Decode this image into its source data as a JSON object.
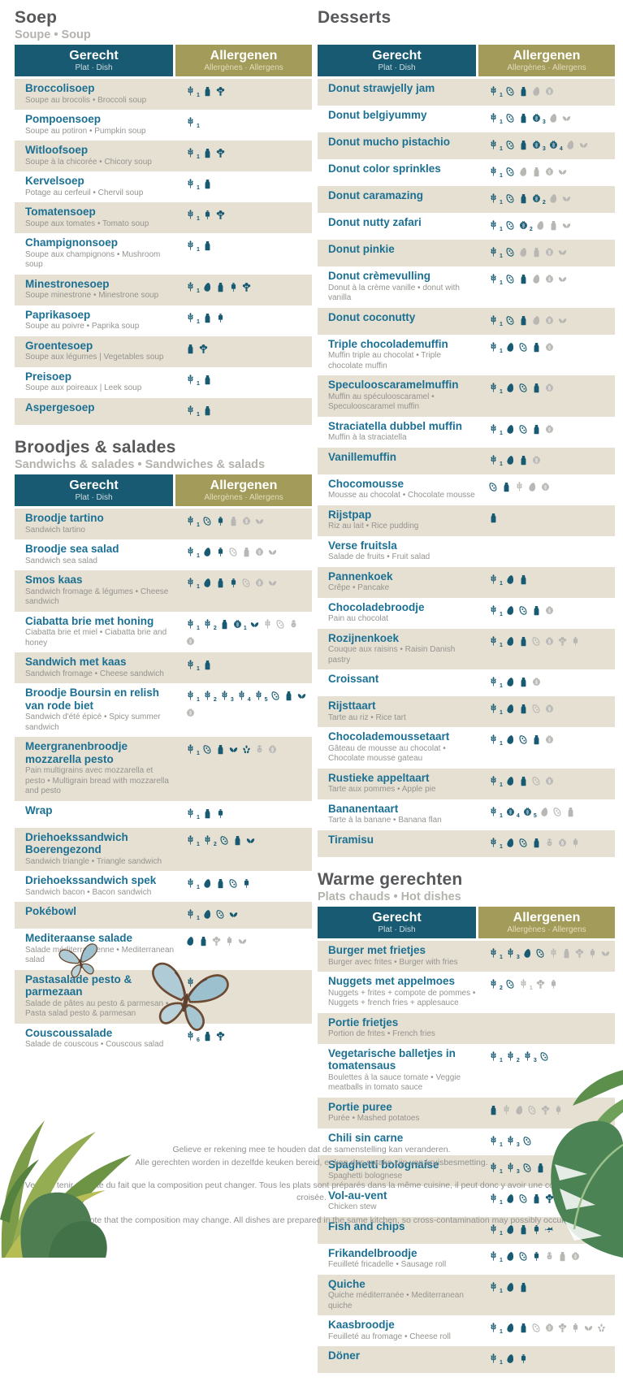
{
  "table_header": {
    "dish_title": "Gerecht",
    "dish_sub": "Plat · Dish",
    "allergen_title": "Allergenen",
    "allergen_sub": "Allergènes · Allergens"
  },
  "colors": {
    "teal_header": "#175a72",
    "olive_header": "#a39b59",
    "row_beige": "#e5e0d2",
    "dish_name_teal": "#1c7093",
    "icon_present": "#175a72",
    "icon_trace": "#b9b7b3"
  },
  "icon_names": [
    "gluten",
    "egg",
    "milk",
    "celery",
    "mustard",
    "soy",
    "nuts",
    "lupine",
    "peanut",
    "sesame",
    "fish"
  ],
  "sections": [
    {
      "id": "soep",
      "column": "left",
      "title": "Soep",
      "subtitle": "Soupe • Soup",
      "rows": [
        {
          "name": "Broccolisoep",
          "subtitle": "Soupe au brocolis • Broccoli soup",
          "allergens": [
            "gluten.1",
            "milk",
            "celery"
          ]
        },
        {
          "name": "Pompoensoep",
          "subtitle": "Soupe au potiron • Pumpkin soup",
          "allergens": [
            "gluten.1"
          ]
        },
        {
          "name": "Witloofsoep",
          "subtitle": "Soupe à la chicorée • Chicory soup",
          "allergens": [
            "gluten.1",
            "milk",
            "celery"
          ]
        },
        {
          "name": "Kervelsoep",
          "subtitle": "Potage au cerfeuil • Chervil soup",
          "allergens": [
            "gluten.1",
            "milk"
          ]
        },
        {
          "name": "Tomatensoep",
          "subtitle": "Soupe aux tomates • Tomato soup",
          "allergens": [
            "gluten.1",
            "mustard",
            "celery"
          ]
        },
        {
          "name": "Champignonsoep",
          "subtitle": "Soupe aux champignons • Mushroom soup",
          "allergens": [
            "gluten.1",
            "milk"
          ]
        },
        {
          "name": "Minestronesoep",
          "subtitle": "Soupe minestrone • Minestrone soup",
          "allergens": [
            "gluten.1",
            "egg",
            "milk",
            "mustard",
            "celery"
          ]
        },
        {
          "name": "Paprikasoep",
          "subtitle": "Soupe au poivre • Paprika soup",
          "allergens": [
            "gluten.1",
            "milk",
            "mustard"
          ]
        },
        {
          "name": "Groentesoep",
          "subtitle": "Soupe aux légumes | Vegetables soup",
          "allergens": [
            "milk",
            "celery"
          ]
        },
        {
          "name": "Preisoep",
          "subtitle": "Soupe aux poireaux | Leek soup",
          "allergens": [
            "gluten.1",
            "milk"
          ]
        },
        {
          "name": "Aspergesoep",
          "subtitle": "",
          "allergens": [
            "gluten.1",
            "milk"
          ]
        }
      ]
    },
    {
      "id": "broodjes",
      "column": "left",
      "title": "Broodjes & salades",
      "subtitle": "Sandwichs & salades • Sandwiches & salads",
      "rows": [
        {
          "name": "Broodje tartino",
          "subtitle": "Sandwich tartino",
          "allergens": [
            "gluten.1",
            "soy",
            "mustard",
            "-milk",
            "-nuts",
            "-lupine"
          ]
        },
        {
          "name": "Broodje sea salad",
          "subtitle": "Sandwich sea salad",
          "allergens": [
            "gluten.1",
            "egg",
            "mustard",
            "-soy",
            "-milk",
            "-nuts",
            "-lupine"
          ]
        },
        {
          "name": "Smos kaas",
          "subtitle": "Sandwich fromage & légumes • Cheese sandwich",
          "allergens": [
            "gluten.1",
            "egg",
            "milk",
            "mustard",
            "-soy",
            "-nuts",
            "-lupine"
          ]
        },
        {
          "name": "Ciabatta brie met honing",
          "subtitle": "Ciabatta brie et miel • Ciabatta brie and honey",
          "allergens": [
            "gluten.1",
            "gluten.2",
            "milk",
            "nuts.1",
            "lupine",
            "-gluten",
            "-soy",
            "-peanut",
            "-nuts"
          ]
        },
        {
          "name": "Sandwich met kaas",
          "subtitle": "Sandwich fromage • Cheese sandwich",
          "allergens": [
            "gluten.1",
            "milk"
          ]
        },
        {
          "name": "Broodje Boursin en relish van rode biet",
          "subtitle": "Sandwich d'été épicé • Spicy summer sandwich",
          "allergens": [
            "gluten.1",
            "gluten.2",
            "gluten.3",
            "gluten.4",
            "gluten.5",
            "soy",
            "milk",
            "lupine",
            "-nuts"
          ]
        },
        {
          "name": "Meergranenbroodje mozzarella pesto",
          "subtitle": "Pain multigrains avec mozzarella et pesto • Multigrain bread with mozzarella and pesto",
          "allergens": [
            "gluten.1",
            "soy",
            "milk",
            "lupine",
            "sesame",
            "-peanut",
            "-nuts"
          ]
        },
        {
          "name": "Wrap",
          "subtitle": "",
          "allergens": [
            "gluten.1",
            "milk",
            "mustard"
          ]
        },
        {
          "name": "Driehoekssandwich Boerengezond",
          "subtitle": "Sandwich triangle • Triangle sandwich",
          "allergens": [
            "gluten.1",
            "gluten.2",
            "soy",
            "milk",
            "lupine"
          ]
        },
        {
          "name": "Driehoekssandwich spek",
          "subtitle": "Sandwich bacon • Bacon sandwich",
          "allergens": [
            "gluten.1",
            "egg",
            "milk",
            "soy",
            "mustard"
          ]
        },
        {
          "name": "Pokébowl",
          "subtitle": "",
          "allergens": [
            "gluten.1",
            "egg",
            "soy",
            "lupine"
          ]
        },
        {
          "name": "Mediteraanse salade",
          "subtitle": "Salade méditerranéenne • Mediterranean salad",
          "allergens": [
            "egg",
            "milk",
            "-celery",
            "-mustard",
            "-lupine"
          ]
        },
        {
          "name": "Pastasalade pesto & parmezaan",
          "subtitle": "Salade de pâtes au pesto & parmesan • Pasta salad pesto & parmesan",
          "allergens": [
            "gluten.1",
            "egg",
            "milk"
          ]
        },
        {
          "name": "Couscoussalade",
          "subtitle": "Salade de couscous • Couscous salad",
          "allergens": [
            "gluten.6",
            "milk",
            "celery"
          ]
        }
      ]
    },
    {
      "id": "desserts",
      "column": "right",
      "title": "Desserts",
      "subtitle": "",
      "rows": [
        {
          "name": "Donut strawjelly jam",
          "subtitle": "",
          "allergens": [
            "gluten.1",
            "soy",
            "milk",
            "-egg",
            "-nuts"
          ]
        },
        {
          "name": "Donut belgiyummy",
          "subtitle": "",
          "allergens": [
            "gluten.1",
            "soy",
            "milk",
            "nuts.3",
            "-egg",
            "-lupine"
          ]
        },
        {
          "name": "Donut mucho pistachio",
          "subtitle": "",
          "allergens": [
            "gluten.1",
            "soy",
            "milk",
            "nuts.3",
            "nuts.4",
            "-egg",
            "-lupine"
          ]
        },
        {
          "name": "Donut color sprinkles",
          "subtitle": "",
          "allergens": [
            "gluten.1",
            "soy",
            "-egg",
            "-milk",
            "-nuts",
            "-lupine"
          ]
        },
        {
          "name": "Donut caramazing",
          "subtitle": "",
          "allergens": [
            "gluten.1",
            "soy",
            "milk",
            "nuts.2",
            "-egg",
            "-lupine"
          ]
        },
        {
          "name": "Donut nutty zafari",
          "subtitle": "",
          "allergens": [
            "gluten.1",
            "soy",
            "nuts.2",
            "-egg",
            "-milk",
            "-lupine"
          ]
        },
        {
          "name": "Donut pinkie",
          "subtitle": "",
          "allergens": [
            "gluten.1",
            "soy",
            "-egg",
            "-milk",
            "-nuts",
            "-lupine"
          ]
        },
        {
          "name": "Donut crèmevulling",
          "subtitle": "Donut à la crème vanille • donut with vanilla",
          "allergens": [
            "gluten.1",
            "soy",
            "milk",
            "-egg",
            "-nuts",
            "-lupine"
          ]
        },
        {
          "name": "Donut coconutty",
          "subtitle": "",
          "allergens": [
            "gluten.1",
            "soy",
            "milk",
            "-egg",
            "-nuts",
            "-lupine"
          ]
        },
        {
          "name": "Triple chocolademuffin",
          "subtitle": "Muffin triple au chocolat • Triple chocolate muffin",
          "allergens": [
            "gluten.1",
            "egg",
            "soy",
            "milk",
            "-nuts"
          ]
        },
        {
          "name": "Speculooscaramelmuffin",
          "subtitle": "Muffin au spéculooscaramel • Speculooscaramel muffin",
          "allergens": [
            "gluten.1",
            "egg",
            "soy",
            "milk",
            "-nuts"
          ]
        },
        {
          "name": "Straciatella dubbel muffin",
          "subtitle": "Muffin à la straciatella",
          "allergens": [
            "gluten.1",
            "egg",
            "soy",
            "milk",
            "-nuts"
          ]
        },
        {
          "name": "Vanillemuffin",
          "subtitle": "",
          "allergens": [
            "gluten.1",
            "egg",
            "milk",
            "-nuts"
          ]
        },
        {
          "name": "Chocomousse",
          "subtitle": "Mousse au chocolat • Chocolate mousse",
          "allergens": [
            "soy",
            "milk",
            "-gluten",
            "-egg",
            "-nuts"
          ]
        },
        {
          "name": "Rijstpap",
          "subtitle": "Riz au lait • Rice pudding",
          "allergens": [
            "milk"
          ]
        },
        {
          "name": "Verse fruitsla",
          "subtitle": "Salade de fruits • Fruit salad",
          "allergens": []
        },
        {
          "name": "Pannenkoek",
          "subtitle": "Crêpe • Pancake",
          "allergens": [
            "gluten.1",
            "egg",
            "milk"
          ]
        },
        {
          "name": "Chocoladebroodje",
          "subtitle": "Pain au chocolat",
          "allergens": [
            "gluten.1",
            "egg",
            "soy",
            "milk",
            "-nuts"
          ]
        },
        {
          "name": "Rozijnenkoek",
          "subtitle": "Couque aux raisins • Raisin Danish pastry",
          "allergens": [
            "gluten.1",
            "egg",
            "milk",
            "-soy",
            "-nuts",
            "-celery",
            "-mustard"
          ]
        },
        {
          "name": "Croissant",
          "subtitle": "",
          "allergens": [
            "gluten.1",
            "egg",
            "milk",
            "-nuts"
          ]
        },
        {
          "name": "Rijsttaart",
          "subtitle": "Tarte au riz • Rice tart",
          "allergens": [
            "gluten.1",
            "egg",
            "milk",
            "-soy",
            "-nuts"
          ]
        },
        {
          "name": "Chocolademoussetaart",
          "subtitle": "Gâteau de mousse au chocolat • Chocolate mousse gateau",
          "allergens": [
            "gluten.1",
            "egg",
            "soy",
            "milk",
            "-nuts"
          ]
        },
        {
          "name": "Rustieke appeltaart",
          "subtitle": "Tarte aux pommes • Apple pie",
          "allergens": [
            "gluten.1",
            "egg",
            "milk",
            "-soy",
            "-nuts"
          ]
        },
        {
          "name": "Bananentaart",
          "subtitle": "Tarte à la banane • Banana flan",
          "allergens": [
            "gluten.1",
            "nuts.4",
            "nuts.5",
            "-egg",
            "-soy",
            "-milk"
          ]
        },
        {
          "name": "Tiramisu",
          "subtitle": "",
          "allergens": [
            "gluten.1",
            "egg",
            "soy",
            "milk",
            "-peanut",
            "-nuts",
            "-mustard"
          ]
        }
      ]
    },
    {
      "id": "warme-gerechten",
      "column": "right",
      "title": "Warme gerechten",
      "subtitle": "Plats chauds • Hot dishes",
      "rows": [
        {
          "name": "Burger met frietjes",
          "subtitle": "Burger avec frites • Burger with fries",
          "allergens": [
            "gluten.1",
            "gluten.3",
            "egg",
            "soy",
            "-gluten",
            "-milk",
            "-celery",
            "-mustard",
            "-lupine"
          ]
        },
        {
          "name": "Nuggets met appelmoes",
          "subtitle": "Nuggets + frites + compote de pommes • Nuggets + french fries + applesauce",
          "allergens": [
            "gluten.2",
            "soy",
            "-gluten.1",
            "-celery",
            "-mustard"
          ]
        },
        {
          "name": "Portie frietjes",
          "subtitle": "Portion de frites • French fries",
          "allergens": []
        },
        {
          "name": "Vegetarische balletjes in tomatensaus",
          "subtitle": "Boulettes à la sauce tomate • Veggie meatballs in tomato sauce",
          "allergens": [
            "gluten.1",
            "gluten.2",
            "gluten.3",
            "soy"
          ]
        },
        {
          "name": "Portie puree",
          "subtitle": "Purée • Mashed potatoes",
          "allergens": [
            "milk",
            "-gluten",
            "-egg",
            "-soy",
            "-celery",
            "-mustard"
          ]
        },
        {
          "name": "Chili sin carne",
          "subtitle": "",
          "allergens": [
            "gluten.1",
            "gluten.3",
            "soy"
          ]
        },
        {
          "name": "Spaghetti bolognaise",
          "subtitle": "Spaghetti bolognese",
          "allergens": [
            "gluten.1",
            "gluten.3",
            "soy",
            "milk"
          ]
        },
        {
          "name": "Vol-au-vent",
          "subtitle": "Chicken stew",
          "allergens": [
            "gluten.1",
            "egg",
            "soy",
            "milk",
            "celery"
          ]
        },
        {
          "name": "Fish and chips",
          "subtitle": "",
          "allergens": [
            "gluten.1",
            "egg",
            "milk",
            "mustard",
            "fish"
          ]
        },
        {
          "name": "Frikandelbroodje",
          "subtitle": "Feuilleté fricadelle • Sausage roll",
          "allergens": [
            "gluten.1",
            "egg",
            "soy",
            "mustard",
            "-peanut",
            "-milk",
            "-nuts"
          ]
        },
        {
          "name": "Quiche",
          "subtitle": "Quiche méditerranée • Mediterranean quiche",
          "allergens": [
            "gluten.1",
            "egg",
            "milk"
          ]
        },
        {
          "name": "Kaasbroodje",
          "subtitle": "Feuilleté au fromage • Cheese roll",
          "allergens": [
            "gluten.1",
            "egg",
            "milk",
            "-soy",
            "-nuts",
            "-celery",
            "-mustard",
            "-lupine",
            "-sesame"
          ]
        },
        {
          "name": "Döner",
          "subtitle": "",
          "allergens": [
            "gluten.1",
            "egg",
            "mustard"
          ]
        }
      ]
    }
  ],
  "footer": {
    "line1": "Gelieve er rekening mee te houden dat de samenstelling kan veranderen.",
    "line2": "Alle gerechten worden in dezelfde keuken bereid, er kan dus sprake zijn van kruisbesmetting.",
    "line3": "Veuillez tenir compte du fait que la composition peut changer. Tous les plats sont préparés dans la même cuisine, il peut donc y avoir une contamination croisée.",
    "line4": "Please note that the composition may change. All dishes are prepared in the same kitchen, so cross-contamination may possibly occur."
  }
}
